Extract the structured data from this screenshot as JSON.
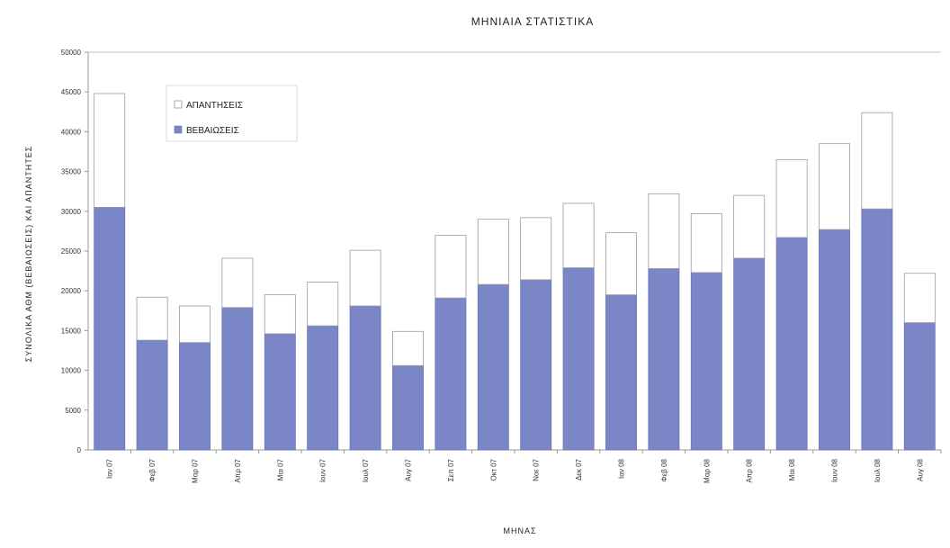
{
  "chart_data": {
    "type": "bar",
    "stacked": true,
    "title": "ΜΗΝΙΑΙΑ ΣΤΑΤΙΣΤΙΚΑ",
    "xlabel": "ΜΗΝΑΣ",
    "ylabel": "ΣΥΝΟΛΙΚΑ ΑΘΜ (ΒΕΒΑΙΩΣΕΙΣ) ΚΑΙ ΑΠΑΝΤΗΤΕΣ",
    "ylim": [
      0,
      50000
    ],
    "yticks": [
      0,
      5000,
      10000,
      15000,
      20000,
      25000,
      30000,
      35000,
      40000,
      45000,
      50000
    ],
    "ytick_labels": [
      "0",
      "5000",
      "10000",
      "15000",
      "20000",
      "25000",
      "30000",
      "35000",
      "40000",
      "45000",
      "50000"
    ],
    "grid": false,
    "legend_position": "top-left",
    "categories": [
      "Ιαν 07",
      "Φεβ 07",
      "Μαρ 07",
      "Απρ 07",
      "Μαι 07",
      "Ιουν 07",
      "Ιουλ 07",
      "Αυγ 07",
      "Σεπ 07",
      "Οκτ 07",
      "Νοε 07",
      "Δεκ 07",
      "Ιαν 08",
      "Φεβ 08",
      "Μαρ 08",
      "Απρ 08",
      "Μαι 08",
      "Ιουν 08",
      "Ιουλ 08",
      "Αυγ 08"
    ],
    "series": [
      {
        "name": "ΒΕΒΑΙΩΣΕΙΣ",
        "color": "#7b86c6",
        "values": [
          30500,
          13800,
          13500,
          17900,
          14600,
          15600,
          18100,
          10600,
          19100,
          20800,
          21400,
          22900,
          19500,
          22800,
          22300,
          24100,
          26700,
          27700,
          30300,
          16000
        ]
      },
      {
        "name": "ΑΠΑΝΤΗΣΕΙΣ",
        "color": "#ffffff",
        "values": [
          14300,
          5400,
          4600,
          6200,
          4900,
          5500,
          7000,
          4300,
          7900,
          8200,
          7800,
          8100,
          7800,
          9400,
          7400,
          7900,
          9800,
          10800,
          12100,
          6200
        ]
      }
    ]
  }
}
